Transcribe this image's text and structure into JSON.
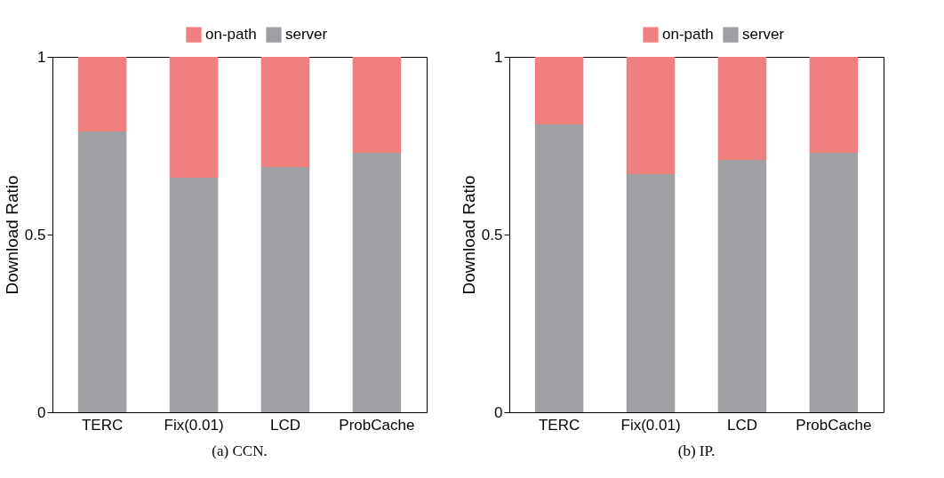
{
  "chart_data": [
    {
      "type": "bar",
      "stacked": true,
      "categories": [
        "TERC",
        "Fix(0.01)",
        "LCD",
        "ProbCache"
      ],
      "ylabel": "Download Ratio",
      "ylim": [
        0,
        1
      ],
      "yticks": [
        0,
        0.5,
        1
      ],
      "legend": "top",
      "annotations": [
        "(a) CCN."
      ],
      "series": [
        {
          "name": "server",
          "color": "#9fa0a4",
          "values": [
            0.79,
            0.66,
            0.69,
            0.73
          ]
        },
        {
          "name": "on-path",
          "color": "#f08080",
          "values": [
            0.21,
            0.34,
            0.31,
            0.27
          ]
        }
      ]
    },
    {
      "type": "bar",
      "stacked": true,
      "categories": [
        "TERC",
        "Fix(0.01)",
        "LCD",
        "ProbCache"
      ],
      "ylabel": "Download Ratio",
      "ylim": [
        0,
        1
      ],
      "yticks": [
        0,
        0.5,
        1
      ],
      "legend": "top",
      "annotations": [
        "(b) IP."
      ],
      "series": [
        {
          "name": "server",
          "color": "#9fa0a4",
          "values": [
            0.81,
            0.67,
            0.71,
            0.73
          ]
        },
        {
          "name": "on-path",
          "color": "#f08080",
          "values": [
            0.19,
            0.33,
            0.29,
            0.27
          ]
        }
      ]
    }
  ]
}
